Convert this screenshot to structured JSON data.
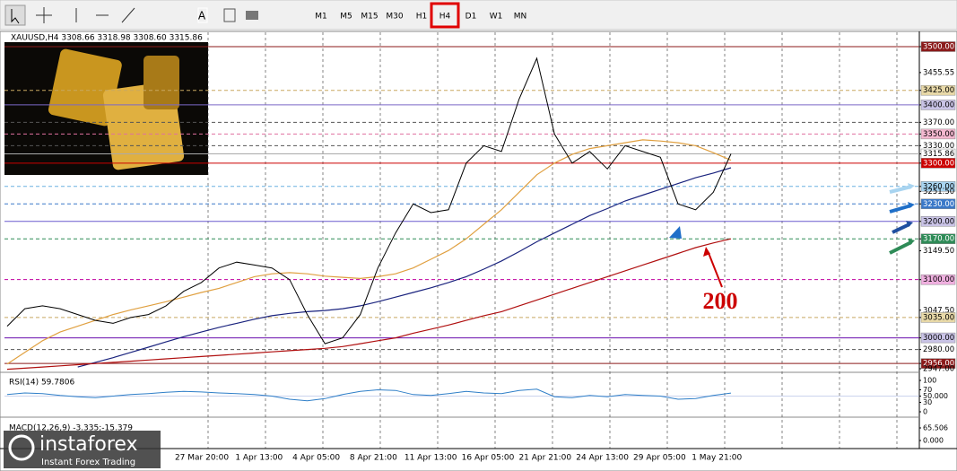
{
  "toolbar": {
    "text_tool": "A",
    "timeframes": [
      "M1",
      "M5",
      "M15",
      "M30",
      "H1",
      "H4",
      "D1",
      "W1",
      "MN"
    ],
    "active": 5
  },
  "chart": {
    "header": "XAUUSD,H4  3308.66 3318.98 3308.60 3315.86",
    "ylim": [
      2947,
      3500
    ],
    "levels": [
      {
        "value": 3500,
        "label": "3500.00",
        "bg": "#8b1a1a",
        "fg": "#ffffff",
        "line": "solid",
        "line_color": "#8b1a1a"
      },
      {
        "value": 3455.55,
        "label": "3455.55"
      },
      {
        "value": 3425,
        "label": "3425.00",
        "bg": "#e8d9a8",
        "line": "dash",
        "line_color": "#c8a860"
      },
      {
        "value": 3400,
        "label": "3400.00",
        "bg": "#c9c3e6",
        "line": "solid",
        "line_color": "#7b68c8"
      },
      {
        "value": 3370,
        "label": "3370.00",
        "line": "dash",
        "line_color": "#555555"
      },
      {
        "value": 3350,
        "label": "3350.00",
        "bg": "#f4b8d0",
        "line": "dash",
        "line_color": "#e070a0"
      },
      {
        "value": 3330,
        "label": "3330.00",
        "line": "dash",
        "line_color": "#555555"
      },
      {
        "value": 3315.86,
        "label": "3315.86",
        "bg": "#ffffff",
        "line": "solid",
        "line_color": "#aaaaaa"
      },
      {
        "value": 3300,
        "label": "3300.00",
        "bg": "#cc0000",
        "fg": "#ffffff",
        "line": "solid",
        "line_color": "#cc0000"
      },
      {
        "value": 3260,
        "label": "3260.00",
        "bg": "#a8d4f0",
        "line": "dash",
        "line_color": "#6ab0e0"
      },
      {
        "value": 3251.5,
        "label": "3251.50"
      },
      {
        "value": 3230,
        "label": "3230.00",
        "bg": "#3a78c8",
        "fg": "#ffffff",
        "line": "dash",
        "line_color": "#3a78c8"
      },
      {
        "value": 3200,
        "label": "3200.00",
        "bg": "#c9c3e6",
        "line": "solid",
        "line_color": "#6a5acd"
      },
      {
        "value": 3170,
        "label": "3170.00",
        "bg": "#2e8b57",
        "fg": "#ffffff",
        "line": "dash",
        "line_color": "#2e8b57"
      },
      {
        "value": 3149.5,
        "label": "3149.50"
      },
      {
        "value": 3100,
        "label": "3100.00",
        "bg": "#f0b0e0",
        "line": "dash",
        "line_color": "#c000a0"
      },
      {
        "value": 3047.5,
        "label": "3047.50"
      },
      {
        "value": 3035,
        "label": "3035.00",
        "bg": "#e8d9a8",
        "line": "dash",
        "line_color": "#c8a860"
      },
      {
        "value": 3000,
        "label": "3000.00",
        "bg": "#c9c3e6",
        "line": "solid",
        "line_color": "#6a0dad"
      },
      {
        "value": 2980,
        "label": "2980.00",
        "line": "dash",
        "line_color": "#555555"
      },
      {
        "value": 2956,
        "label": "2956.00",
        "bg": "#8b1a1a",
        "fg": "#ffffff",
        "line": "solid",
        "line_color": "#8b1a1a"
      },
      {
        "value": 2947,
        "label": "2947.00"
      }
    ],
    "price": {
      "color": "#000000",
      "values": [
        3020,
        3050,
        3055,
        3050,
        3040,
        3030,
        3025,
        3035,
        3040,
        3055,
        3080,
        3095,
        3120,
        3130,
        3125,
        3120,
        3100,
        3040,
        2990,
        3000,
        3040,
        3120,
        3180,
        3230,
        3215,
        3220,
        3300,
        3330,
        3320,
        3410,
        3480,
        3350,
        3300,
        3320,
        3290,
        3330,
        3320,
        3310,
        3230,
        3220,
        3250,
        3315.86
      ]
    },
    "moving_averages": [
      {
        "color": "#e0a040",
        "values": [
          2955,
          2975,
          2995,
          3010,
          3020,
          3030,
          3040,
          3048,
          3055,
          3062,
          3070,
          3078,
          3085,
          3095,
          3105,
          3110,
          3112,
          3110,
          3106,
          3104,
          3102,
          3105,
          3110,
          3120,
          3135,
          3150,
          3170,
          3195,
          3220,
          3250,
          3280,
          3300,
          3315,
          3325,
          3330,
          3335,
          3340,
          3338,
          3335,
          3330,
          3318,
          3305
        ]
      },
      {
        "color": "#1a237e",
        "values": [
          null,
          null,
          null,
          null,
          2950,
          2958,
          2966,
          2975,
          2984,
          2993,
          3002,
          3010,
          3018,
          3025,
          3032,
          3038,
          3042,
          3045,
          3047,
          3050,
          3055,
          3062,
          3070,
          3078,
          3086,
          3095,
          3105,
          3118,
          3132,
          3148,
          3165,
          3180,
          3195,
          3210,
          3222,
          3235,
          3245,
          3255,
          3265,
          3275,
          3283,
          3292
        ]
      },
      {
        "color": "#b01010",
        "values": [
          2946,
          2948,
          2950,
          2952,
          2954,
          2956,
          2958,
          2960,
          2962,
          2964,
          2966,
          2968,
          2970,
          2972,
          2974,
          2976,
          2978,
          2980,
          2982,
          2985,
          2990,
          2995,
          3000,
          3008,
          3015,
          3022,
          3030,
          3038,
          3045,
          3055,
          3065,
          3075,
          3085,
          3095,
          3105,
          3115,
          3125,
          3135,
          3145,
          3155,
          3163,
          3170
        ]
      }
    ],
    "annotation": "200",
    "time_labels": [
      "27 Mar 20:00",
      "1 Apr 13:00",
      "4 Apr 05:00",
      "8 Apr 21:00",
      "11 Apr 13:00",
      "16 Apr 05:00",
      "21 Apr 21:00",
      "24 Apr 13:00",
      "29 Apr 05:00",
      "1 May 21:00"
    ],
    "rsi": {
      "label": "RSI(14) 59.7806",
      "ylim": [
        0,
        100
      ],
      "color": "#2f7fc8",
      "yticks": [
        100,
        70,
        {
          "value": 50,
          "label": "50.000"
        },
        30,
        0
      ],
      "values": [
        55,
        60,
        58,
        52,
        48,
        45,
        50,
        55,
        58,
        62,
        65,
        63,
        60,
        58,
        55,
        50,
        40,
        35,
        42,
        55,
        65,
        70,
        68,
        55,
        52,
        58,
        65,
        60,
        58,
        68,
        72,
        48,
        45,
        52,
        48,
        55,
        52,
        50,
        40,
        42,
        52,
        59.78
      ]
    },
    "macd": {
      "label": "MACD(12,26,9) -3.335;-15.379",
      "yticks": [
        {
          "value": 65.506,
          "label": "65.506"
        },
        {
          "value": 0,
          "label": "0.000"
        }
      ]
    }
  },
  "watermark": {
    "brand": "instaforex",
    "tagline": "Instant Forex Trading"
  }
}
